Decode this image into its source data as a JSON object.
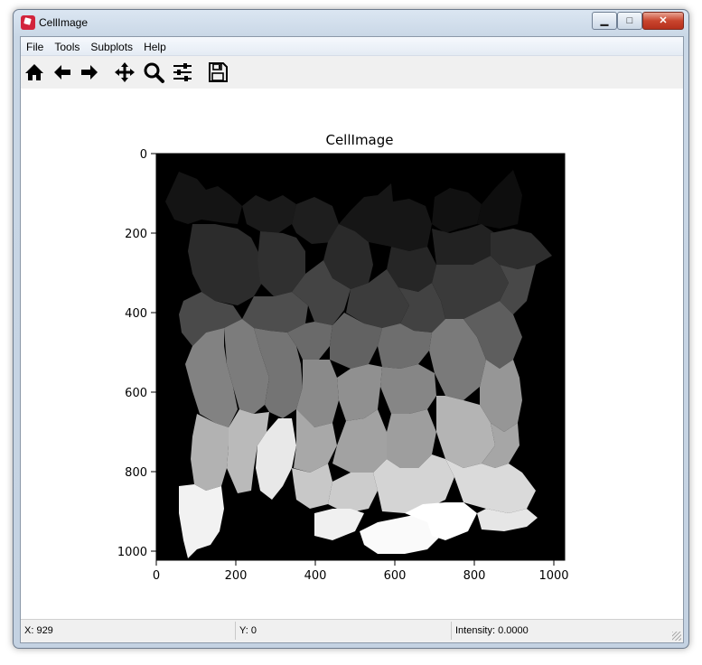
{
  "window": {
    "title": "CellImage"
  },
  "controls": {
    "minimize": "▁",
    "maximize": "□",
    "close": "✕"
  },
  "menu": [
    {
      "label": "File"
    },
    {
      "label": "Tools"
    },
    {
      "label": "Subplots"
    },
    {
      "label": "Help"
    }
  ],
  "toolbar": {
    "home_icon": "home-icon",
    "back_icon": "arrow-left-icon",
    "forward_icon": "arrow-right-icon",
    "pan_icon": "move-icon",
    "zoom_icon": "magnifier-icon",
    "configure_icon": "sliders-icon",
    "save_icon": "floppy-disk-icon"
  },
  "plot": {
    "title": "CellImage",
    "x_ticks": [
      "0",
      "200",
      "400",
      "600",
      "800",
      "1000"
    ],
    "y_ticks": [
      "0",
      "200",
      "400",
      "600",
      "800",
      "1000"
    ],
    "image": "grayscale segmented cell label image"
  },
  "status": {
    "x": "X: 929",
    "y": "Y: 0",
    "intensity": "Intensity: 0.0000"
  },
  "colors": {
    "accent_close": "#c9452e",
    "image_background": "#000000"
  }
}
